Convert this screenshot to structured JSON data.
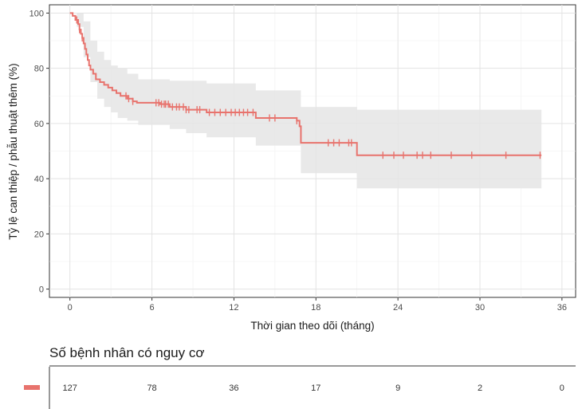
{
  "chart_data": {
    "type": "line",
    "subtype": "kaplan-meier",
    "xlabel": "Thời gian theo dõi (tháng)",
    "ylabel": "Tỷ lệ can thiệp / phẫu thuật thêm (%)",
    "xlim": [
      -1.5,
      37
    ],
    "ylim": [
      -3,
      103
    ],
    "x_ticks": [
      0,
      6,
      12,
      18,
      24,
      30,
      36
    ],
    "y_ticks": [
      0,
      20,
      40,
      60,
      80,
      100
    ],
    "grid": true,
    "color": "#e8736d",
    "ci_color": "#e5e5e5",
    "series": [
      {
        "steps": [
          [
            0,
            100
          ],
          [
            0.2,
            99
          ],
          [
            0.4,
            97.5
          ],
          [
            0.6,
            96
          ],
          [
            0.7,
            94
          ],
          [
            0.8,
            92.5
          ],
          [
            0.9,
            91
          ],
          [
            1.0,
            89
          ],
          [
            1.1,
            87
          ],
          [
            1.2,
            85
          ],
          [
            1.3,
            83
          ],
          [
            1.4,
            81
          ],
          [
            1.5,
            79.5
          ],
          [
            1.7,
            78
          ],
          [
            1.9,
            76
          ],
          [
            2.2,
            75
          ],
          [
            2.5,
            74
          ],
          [
            2.8,
            73
          ],
          [
            3.1,
            72
          ],
          [
            3.4,
            71
          ],
          [
            3.7,
            70
          ],
          [
            4.2,
            69
          ],
          [
            4.6,
            68
          ],
          [
            4.9,
            67.5
          ],
          [
            6.6,
            67
          ],
          [
            7.3,
            66
          ],
          [
            8.5,
            65
          ],
          [
            10.0,
            64
          ],
          [
            13.6,
            62
          ],
          [
            16.6,
            61
          ],
          [
            16.8,
            59
          ],
          [
            16.9,
            53
          ],
          [
            21.0,
            48.5
          ],
          [
            34.5,
            48.5
          ]
        ],
        "ci_upper": [
          [
            0,
            100
          ],
          [
            0.5,
            100
          ],
          [
            1.0,
            97
          ],
          [
            1.5,
            90
          ],
          [
            2.0,
            86
          ],
          [
            2.5,
            83
          ],
          [
            3.0,
            81
          ],
          [
            3.5,
            80
          ],
          [
            4.2,
            78
          ],
          [
            5.0,
            76
          ],
          [
            7.3,
            75.5
          ],
          [
            10.0,
            74.5
          ],
          [
            13.6,
            72
          ],
          [
            16.9,
            66
          ],
          [
            21.0,
            65
          ],
          [
            34.5,
            65
          ]
        ],
        "ci_lower": [
          [
            0,
            100
          ],
          [
            0.5,
            95
          ],
          [
            1.0,
            84
          ],
          [
            1.5,
            75
          ],
          [
            2.0,
            69
          ],
          [
            2.5,
            66
          ],
          [
            3.0,
            64
          ],
          [
            3.5,
            62
          ],
          [
            4.2,
            61
          ],
          [
            5.0,
            59.5
          ],
          [
            7.3,
            58
          ],
          [
            8.5,
            56.5
          ],
          [
            10.0,
            55
          ],
          [
            13.6,
            52
          ],
          [
            16.9,
            42
          ],
          [
            21.0,
            36.5
          ],
          [
            34.5,
            36.5
          ]
        ],
        "censored": [
          0.5,
          0.7,
          0.9,
          4.1,
          4.3,
          4.6,
          6.3,
          6.5,
          6.7,
          6.9,
          7.0,
          7.2,
          7.5,
          7.8,
          8.0,
          8.3,
          8.5,
          8.7,
          9.3,
          9.5,
          10.2,
          10.6,
          11.0,
          11.4,
          11.8,
          12.1,
          12.4,
          12.7,
          13.0,
          13.4,
          14.6,
          15.0,
          16.6,
          18.9,
          19.3,
          19.7,
          20.4,
          20.6,
          22.9,
          23.7,
          24.4,
          25.4,
          25.8,
          26.4,
          27.9,
          29.4,
          31.9,
          34.4
        ]
      }
    ],
    "risk_table": {
      "title": "Số bệnh nhân có nguy cơ",
      "times": [
        0,
        6,
        12,
        18,
        24,
        30,
        36
      ],
      "values": [
        "127",
        "78",
        "36",
        "17",
        "9",
        "2",
        "0"
      ]
    }
  }
}
